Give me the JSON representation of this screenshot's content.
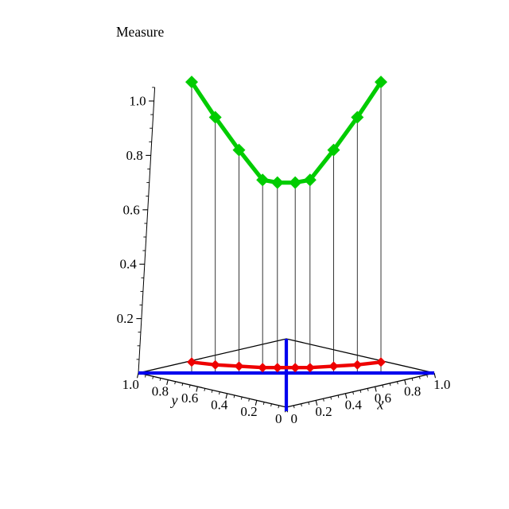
{
  "title": "Measure",
  "background": "#FFFFFF",
  "colors": {
    "axis": "#000000",
    "diagonal_blue": "#0000EE",
    "drop_line": "#202020"
  },
  "axes": {
    "x": {
      "label": "x",
      "tick_labels": [
        "0",
        "0.2",
        "0.4",
        "0.6",
        "0.8",
        "1.0"
      ],
      "tick_values": [
        0,
        0.2,
        0.4,
        0.6,
        0.8,
        1
      ]
    },
    "y": {
      "label": "y",
      "tick_labels": [
        "1.0",
        "0.8",
        "0.6",
        "0.4",
        "0.2",
        "0"
      ],
      "tick_values": [
        1,
        0.8,
        0.6,
        0.4,
        0.2,
        0
      ]
    },
    "z": {
      "label": "Measure",
      "tick_labels": [
        "0.2",
        "0.4",
        "0.6",
        "0.8",
        "1.0"
      ],
      "tick_values": [
        0.2,
        0.4,
        0.6,
        0.8,
        1
      ]
    }
  },
  "chart_data": {
    "type": "line",
    "projection": "3d",
    "title": "Measure",
    "xlabel": "x",
    "ylabel": "y",
    "zlabel": "Measure",
    "xlim": [
      0,
      1
    ],
    "ylim": [
      0,
      1
    ],
    "zlim": [
      0,
      1.1
    ],
    "path_description": "Both curves are evaluated at points lying on the diagonal y = 1 - x of the unit square base plane; thin vertical drop lines join the upper curve to the base; the two blue lines are the diagonals of the unit-square base.",
    "x": [
      0.18,
      0.26,
      0.34,
      0.42,
      0.47,
      0.53,
      0.58,
      0.66,
      0.74,
      0.82
    ],
    "y": [
      0.82,
      0.74,
      0.66,
      0.58,
      0.53,
      0.47,
      0.42,
      0.34,
      0.26,
      0.18
    ],
    "series": [
      {
        "name": "upper measure curve",
        "color": "#00CC00",
        "marker": "diamond",
        "z": [
          1.07,
          0.94,
          0.82,
          0.71,
          0.7,
          0.7,
          0.71,
          0.82,
          0.94,
          1.07
        ]
      },
      {
        "name": "lower measure curve",
        "color": "#EE0000",
        "marker": "diamond",
        "z": [
          0.04,
          0.03,
          0.025,
          0.02,
          0.02,
          0.02,
          0.02,
          0.025,
          0.03,
          0.04
        ]
      }
    ],
    "base_diagonals": [
      {
        "name": "base diagonal from (0,1) to (1,0)",
        "color": "#0000EE"
      },
      {
        "name": "base diagonal from (0,0) to (1,1)",
        "color": "#0000EE"
      }
    ],
    "drop_lines": true,
    "grid": false,
    "legend": false
  }
}
